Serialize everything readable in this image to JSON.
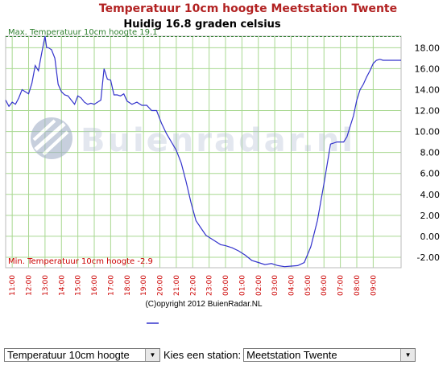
{
  "page": {
    "copyright": "(C)opyright 2012 BuienRadar.NL",
    "watermark": "Buienradar.nl"
  },
  "chart_data": {
    "type": "line",
    "title": "Temperatuur 10cm hoogte Meetstation Twente",
    "subtitle": "Huidig 16.8 graden celsius",
    "max_note": "Max. Temperatuur 10cm hoogte 19.1",
    "min_note": "Min. Temperatuur 10cm hoogte -2.9",
    "ylim": [
      -3,
      19.1
    ],
    "y_ticks": [
      -2,
      0,
      2,
      4,
      6,
      8,
      10,
      12,
      14,
      16,
      18
    ],
    "y_tick_labels": [
      "-2.00",
      "0.00",
      "2.00",
      "4.00",
      "6.00",
      "8.00",
      "10.00",
      "12.00",
      "14.00",
      "16.00",
      "18.00"
    ],
    "x_tick_labels": [
      "11:00",
      "12:00",
      "13:00",
      "14:00",
      "15:00",
      "16:00",
      "17:00",
      "18:00",
      "19:00",
      "20:00",
      "21:00",
      "22:00",
      "23:00",
      "00:00",
      "01:00",
      "02:00",
      "03:00",
      "04:00",
      "05:00",
      "06:00",
      "07:00",
      "08:00",
      "09:00"
    ],
    "x_start_hour": 10.6,
    "x_end_hour": 34.7,
    "grid": true,
    "line_color": "#3333cc",
    "max_line_color": "#2f7f2f",
    "series": [
      {
        "x": [
          10.6,
          10.8,
          11.0,
          11.2,
          11.4,
          11.6,
          11.8,
          12.0,
          12.2,
          12.4,
          12.6,
          12.8,
          13.0,
          13.1,
          13.2,
          13.4,
          13.6,
          13.8,
          14.0,
          14.2,
          14.4,
          14.6,
          14.8,
          15.0,
          15.2,
          15.4,
          15.6,
          15.8,
          16.0,
          16.2,
          16.4,
          16.6,
          16.8,
          17.0,
          17.2,
          17.4,
          17.6,
          17.8,
          18.0,
          18.3,
          18.6,
          18.9,
          19.2,
          19.5,
          19.8,
          20.1,
          20.4,
          20.7,
          21.0,
          21.3,
          21.6,
          21.9,
          22.2,
          22.5,
          22.8,
          23.1,
          23.4,
          23.7,
          24.0,
          24.4,
          24.8,
          25.2,
          25.6,
          26.0,
          26.4,
          26.8,
          27.2,
          27.6,
          28.0,
          28.4,
          28.8,
          29.2,
          29.6,
          30.0,
          30.4,
          30.8,
          31.2,
          31.4,
          31.6,
          31.8,
          32.0,
          32.2,
          32.4,
          32.6,
          32.8,
          33.0,
          33.2,
          33.4,
          33.6,
          33.8,
          34.0,
          34.2,
          34.4,
          34.6,
          34.7
        ],
        "y": [
          13.0,
          12.4,
          12.8,
          12.6,
          13.2,
          14.0,
          13.8,
          13.6,
          14.6,
          16.3,
          15.8,
          17.5,
          19.1,
          18.0,
          18.0,
          17.8,
          17.0,
          14.5,
          13.8,
          13.5,
          13.4,
          13.0,
          12.6,
          13.4,
          13.2,
          12.8,
          12.6,
          12.7,
          12.6,
          12.8,
          13.0,
          16.0,
          15.0,
          14.9,
          13.5,
          13.5,
          13.4,
          13.6,
          12.9,
          12.6,
          12.8,
          12.5,
          12.5,
          12.0,
          12.0,
          10.8,
          9.8,
          9.0,
          8.2,
          7.0,
          5.2,
          3.2,
          1.5,
          0.8,
          0.1,
          -0.2,
          -0.5,
          -0.8,
          -0.9,
          -1.1,
          -1.4,
          -1.8,
          -2.3,
          -2.5,
          -2.7,
          -2.6,
          -2.8,
          -2.9,
          -2.85,
          -2.8,
          -2.5,
          -1.0,
          1.5,
          5.0,
          8.8,
          9.0,
          9.0,
          9.5,
          10.5,
          11.5,
          13.0,
          14.0,
          14.5,
          15.2,
          15.8,
          16.5,
          16.8,
          16.9,
          16.8,
          16.8,
          16.8,
          16.8,
          16.8,
          16.8,
          16.8
        ]
      }
    ]
  },
  "controls": {
    "type_select_value": "Temperatuur 10cm hoogte",
    "station_label": "Kies een station:",
    "station_select_value": "Meetstation Twente"
  }
}
